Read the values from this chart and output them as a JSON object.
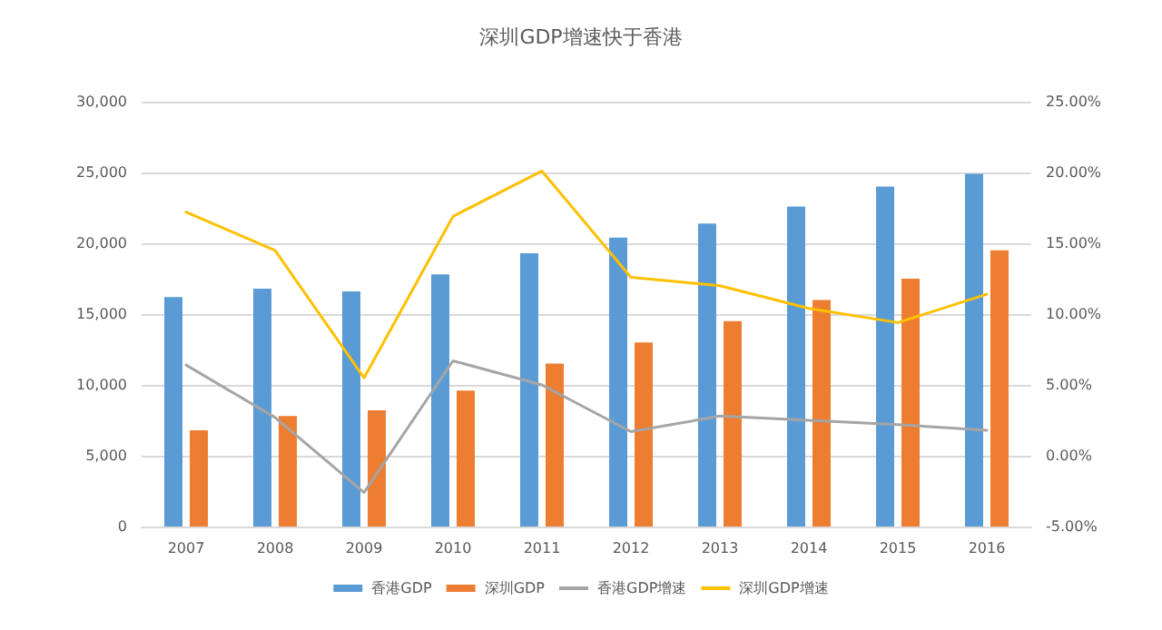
{
  "chart_data": {
    "type": "bar",
    "title": "深圳GDP增速快于香港",
    "categories": [
      "2007",
      "2008",
      "2009",
      "2010",
      "2011",
      "2012",
      "2013",
      "2014",
      "2015",
      "2016"
    ],
    "series": [
      {
        "name": "香港GDP",
        "color": "#5b9bd5",
        "values": [
          16200,
          16800,
          16600,
          17800,
          19300,
          20400,
          21400,
          22600,
          24000,
          24900
        ]
      },
      {
        "name": "深圳GDP",
        "color": "#ed7d31",
        "values": [
          6800,
          7800,
          8200,
          9600,
          11500,
          13000,
          14500,
          16000,
          17500,
          19500
        ]
      },
      {
        "name": "香港GDP增速",
        "type": "line",
        "axis": "y2",
        "color": "#a5a5a5",
        "values": [
          6.4,
          2.7,
          -2.6,
          6.7,
          5.0,
          1.7,
          2.8,
          2.5,
          2.2,
          1.8
        ]
      },
      {
        "name": "深圳GDP增速",
        "type": "line",
        "axis": "y2",
        "color": "#ffc000",
        "values": [
          17.2,
          14.5,
          5.5,
          16.9,
          20.1,
          12.6,
          12.0,
          10.4,
          9.4,
          11.4
        ]
      }
    ],
    "ylim": [
      0,
      30000
    ],
    "yticks": [
      {
        "value": 0,
        "label": "0"
      },
      {
        "value": 5000,
        "label": "5,000"
      },
      {
        "value": 10000,
        "label": "10,000"
      },
      {
        "value": 15000,
        "label": "15,000"
      },
      {
        "value": 20000,
        "label": "20,000"
      },
      {
        "value": 25000,
        "label": "25,000"
      },
      {
        "value": 30000,
        "label": "30,000"
      }
    ],
    "y2lim": [
      -5,
      25
    ],
    "y2ticks": [
      {
        "value": -5,
        "label": "-5.00%"
      },
      {
        "value": 0,
        "label": "0.00%"
      },
      {
        "value": 5,
        "label": "5.00%"
      },
      {
        "value": 10,
        "label": "10.00%"
      },
      {
        "value": 15,
        "label": "15.00%"
      },
      {
        "value": 20,
        "label": "20.00%"
      },
      {
        "value": 25,
        "label": "25.00%"
      }
    ],
    "grid": "y",
    "legend": "bottom",
    "marker": "none",
    "line_style": "solid"
  }
}
